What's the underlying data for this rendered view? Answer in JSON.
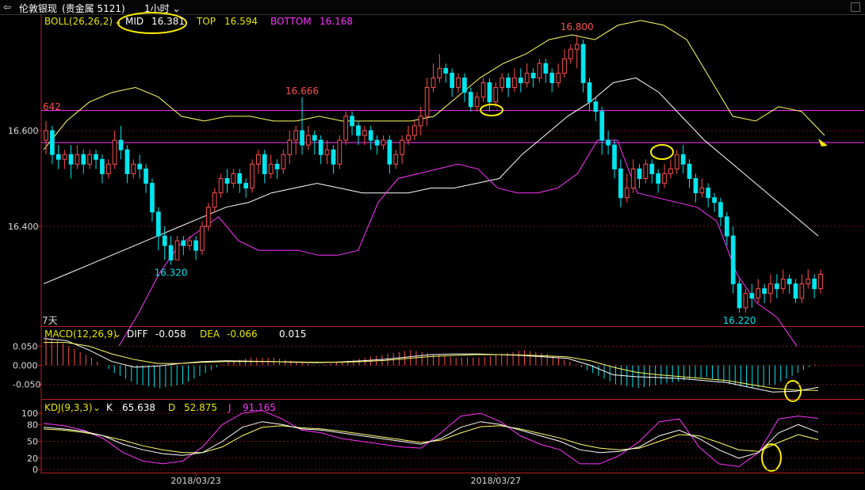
{
  "header": {
    "back_icon": "back-arrow-icon",
    "instrument": "伦敦银现",
    "instrument_detail": "(贵金属 5121)",
    "period": "1小时",
    "period_dropdown_icon": "chevron-down-icon"
  },
  "boll": {
    "label": "BOLL(26,26,2)",
    "mid_label": "MID",
    "mid_value": "16.381",
    "top_label": "TOP",
    "top_value": "16.594",
    "bottom_label": "BOTTOM",
    "bottom_value": "16.168",
    "level_642": "642",
    "days_label": "7天"
  },
  "macd": {
    "label": "MACD(12,26,9)",
    "diff_label": "DIFF",
    "diff_value": "-0.058",
    "dea_label": "DEA",
    "dea_value": "-0.066",
    "macd_value": "0.015"
  },
  "kdj": {
    "label": "KDJ(9,3,3)",
    "k_label": "K",
    "k_value": "65.638",
    "d_label": "D",
    "d_value": "52.875",
    "j_label": "J",
    "j_value": "91.165"
  },
  "colors": {
    "up": "#ff4f4f",
    "down": "#00e5ee",
    "mid": "#ffffff",
    "top": "#ffff66",
    "bottom": "#ff33ff",
    "hline": "#ff33ff",
    "grid": "#7a1010",
    "axis_text": "#dddddd",
    "annotation": "#ffee00",
    "label_yellow": "#e6e600",
    "label_magenta": "#ff33ff"
  },
  "chart_data": {
    "type": "candlestick",
    "main": {
      "y_ticks": [
        16.4,
        16.6
      ],
      "y_tick_labels": [
        "16.400",
        "16.600"
      ],
      "ylim": [
        16.2,
        16.8
      ],
      "annotations": [
        {
          "text": "16.666",
          "value": 16.666,
          "color": "#ff4f4f",
          "bar": 41
        },
        {
          "text": "16.800",
          "value": 16.8,
          "color": "#ff4f4f",
          "bar": 85
        },
        {
          "text": "16.320",
          "value": 16.32,
          "color": "#00e5ee",
          "bar": 20
        },
        {
          "text": "16.220",
          "value": 16.22,
          "color": "#00e5ee",
          "bar": 111
        }
      ],
      "horizontal_lines": [
        16.642,
        16.575
      ],
      "candles": [
        [
          16.58,
          16.6,
          16.55,
          16.62
        ],
        [
          16.6,
          16.55,
          16.53,
          16.61
        ],
        [
          16.55,
          16.54,
          16.52,
          16.57
        ],
        [
          16.54,
          16.55,
          16.52,
          16.56
        ],
        [
          16.55,
          16.53,
          16.5,
          16.57
        ],
        [
          16.53,
          16.55,
          16.52,
          16.57
        ],
        [
          16.55,
          16.53,
          16.51,
          16.56
        ],
        [
          16.53,
          16.55,
          16.52,
          16.56
        ],
        [
          16.55,
          16.54,
          16.52,
          16.56
        ],
        [
          16.54,
          16.51,
          16.49,
          16.55
        ],
        [
          16.51,
          16.53,
          16.5,
          16.54
        ],
        [
          16.53,
          16.58,
          16.52,
          16.6
        ],
        [
          16.58,
          16.56,
          16.54,
          16.61
        ],
        [
          16.56,
          16.51,
          16.49,
          16.57
        ],
        [
          16.51,
          16.53,
          16.5,
          16.54
        ],
        [
          16.53,
          16.52,
          16.5,
          16.55
        ],
        [
          16.52,
          16.49,
          16.47,
          16.53
        ],
        [
          16.49,
          16.43,
          16.41,
          16.5
        ],
        [
          16.43,
          16.38,
          16.35,
          16.44
        ],
        [
          16.38,
          16.36,
          16.33,
          16.4
        ],
        [
          16.36,
          16.33,
          16.32,
          16.38
        ],
        [
          16.33,
          16.37,
          16.33,
          16.38
        ],
        [
          16.37,
          16.36,
          16.34,
          16.38
        ],
        [
          16.36,
          16.37,
          16.35,
          16.38
        ],
        [
          16.37,
          16.35,
          16.33,
          16.38
        ],
        [
          16.35,
          16.4,
          16.34,
          16.41
        ],
        [
          16.4,
          16.44,
          16.39,
          16.45
        ],
        [
          16.44,
          16.47,
          16.43,
          16.48
        ],
        [
          16.47,
          16.5,
          16.46,
          16.51
        ],
        [
          16.5,
          16.49,
          16.47,
          16.52
        ],
        [
          16.49,
          16.51,
          16.48,
          16.52
        ],
        [
          16.51,
          16.49,
          16.47,
          16.52
        ],
        [
          16.49,
          16.48,
          16.46,
          16.5
        ],
        [
          16.48,
          16.53,
          16.47,
          16.54
        ],
        [
          16.53,
          16.55,
          16.51,
          16.56
        ],
        [
          16.55,
          16.51,
          16.49,
          16.56
        ],
        [
          16.51,
          16.53,
          16.5,
          16.55
        ],
        [
          16.53,
          16.52,
          16.5,
          16.54
        ],
        [
          16.52,
          16.55,
          16.51,
          16.56
        ],
        [
          16.55,
          16.58,
          16.53,
          16.6
        ],
        [
          16.58,
          16.6,
          16.55,
          16.61
        ],
        [
          16.6,
          16.57,
          16.55,
          16.67
        ],
        [
          16.57,
          16.59,
          16.56,
          16.61
        ],
        [
          16.59,
          16.58,
          16.55,
          16.6
        ],
        [
          16.58,
          16.55,
          16.53,
          16.59
        ],
        [
          16.55,
          16.56,
          16.53,
          16.58
        ],
        [
          16.56,
          16.53,
          16.51,
          16.57
        ],
        [
          16.53,
          16.58,
          16.52,
          16.59
        ],
        [
          16.58,
          16.63,
          16.57,
          16.64
        ],
        [
          16.63,
          16.61,
          16.59,
          16.64
        ],
        [
          16.61,
          16.59,
          16.57,
          16.62
        ],
        [
          16.59,
          16.6,
          16.57,
          16.61
        ],
        [
          16.6,
          16.58,
          16.56,
          16.61
        ],
        [
          16.58,
          16.57,
          16.55,
          16.59
        ],
        [
          16.57,
          16.58,
          16.56,
          16.59
        ],
        [
          16.58,
          16.53,
          16.51,
          16.59
        ],
        [
          16.53,
          16.55,
          16.52,
          16.56
        ],
        [
          16.55,
          16.58,
          16.53,
          16.59
        ],
        [
          16.58,
          16.59,
          16.57,
          16.61
        ],
        [
          16.59,
          16.61,
          16.58,
          16.62
        ],
        [
          16.61,
          16.63,
          16.59,
          16.65
        ],
        [
          16.63,
          16.69,
          16.61,
          16.71
        ],
        [
          16.69,
          16.71,
          16.68,
          16.74
        ],
        [
          16.71,
          16.73,
          16.7,
          16.76
        ],
        [
          16.73,
          16.72,
          16.7,
          16.74
        ],
        [
          16.72,
          16.69,
          16.67,
          16.73
        ],
        [
          16.69,
          16.71,
          16.68,
          16.72
        ],
        [
          16.71,
          16.68,
          16.66,
          16.72
        ],
        [
          16.68,
          16.65,
          16.64,
          16.69
        ],
        [
          16.65,
          16.67,
          16.64,
          16.68
        ],
        [
          16.67,
          16.7,
          16.66,
          16.71
        ],
        [
          16.7,
          16.66,
          16.64,
          16.71
        ],
        [
          16.66,
          16.69,
          16.65,
          16.7
        ],
        [
          16.69,
          16.71,
          16.68,
          16.72
        ],
        [
          16.71,
          16.69,
          16.67,
          16.72
        ],
        [
          16.69,
          16.71,
          16.68,
          16.73
        ],
        [
          16.71,
          16.7,
          16.68,
          16.73
        ],
        [
          16.7,
          16.72,
          16.69,
          16.74
        ],
        [
          16.72,
          16.71,
          16.69,
          16.73
        ],
        [
          16.71,
          16.74,
          16.7,
          16.75
        ],
        [
          16.74,
          16.72,
          16.7,
          16.75
        ],
        [
          16.72,
          16.7,
          16.68,
          16.73
        ],
        [
          16.7,
          16.72,
          16.69,
          16.74
        ],
        [
          16.72,
          16.75,
          16.71,
          16.77
        ],
        [
          16.75,
          16.77,
          16.74,
          16.78
        ],
        [
          16.77,
          16.78,
          16.73,
          16.8
        ],
        [
          16.78,
          16.7,
          16.68,
          16.79
        ],
        [
          16.7,
          16.66,
          16.64,
          16.71
        ],
        [
          16.66,
          16.64,
          16.62,
          16.67
        ],
        [
          16.64,
          16.58,
          16.55,
          16.65
        ],
        [
          16.58,
          16.57,
          16.55,
          16.6
        ],
        [
          16.57,
          16.52,
          16.5,
          16.58
        ],
        [
          16.52,
          16.46,
          16.44,
          16.54
        ],
        [
          16.46,
          16.48,
          16.45,
          16.51
        ],
        [
          16.48,
          16.52,
          16.47,
          16.54
        ],
        [
          16.52,
          16.5,
          16.48,
          16.53
        ],
        [
          16.5,
          16.53,
          16.49,
          16.54
        ],
        [
          16.53,
          16.51,
          16.49,
          16.54
        ],
        [
          16.51,
          16.49,
          16.47,
          16.52
        ],
        [
          16.49,
          16.51,
          16.48,
          16.53
        ],
        [
          16.51,
          16.52,
          16.5,
          16.54
        ],
        [
          16.52,
          16.55,
          16.51,
          16.56
        ],
        [
          16.55,
          16.53,
          16.51,
          16.57
        ],
        [
          16.53,
          16.5,
          16.48,
          16.54
        ],
        [
          16.5,
          16.47,
          16.45,
          16.51
        ],
        [
          16.47,
          16.48,
          16.46,
          16.5
        ],
        [
          16.48,
          16.46,
          16.44,
          16.49
        ],
        [
          16.46,
          16.45,
          16.43,
          16.47
        ],
        [
          16.45,
          16.42,
          16.4,
          16.46
        ],
        [
          16.42,
          16.38,
          16.36,
          16.43
        ],
        [
          16.38,
          16.28,
          16.26,
          16.4
        ],
        [
          16.28,
          16.23,
          16.22,
          16.29
        ],
        [
          16.23,
          16.26,
          16.22,
          16.27
        ],
        [
          16.26,
          16.25,
          16.23,
          16.28
        ],
        [
          16.25,
          16.27,
          16.24,
          16.29
        ],
        [
          16.27,
          16.26,
          16.24,
          16.28
        ],
        [
          16.26,
          16.28,
          16.24,
          16.3
        ],
        [
          16.28,
          16.27,
          16.25,
          16.3
        ],
        [
          16.27,
          16.29,
          16.26,
          16.31
        ],
        [
          16.29,
          16.28,
          16.26,
          16.3
        ],
        [
          16.28,
          16.25,
          16.24,
          16.29
        ],
        [
          16.25,
          16.28,
          16.24,
          16.3
        ],
        [
          16.28,
          16.29,
          16.27,
          16.31
        ],
        [
          16.29,
          16.27,
          16.25,
          16.3
        ],
        [
          16.27,
          16.3,
          16.26,
          16.31
        ]
      ],
      "mid_line": [
        16.28,
        16.3,
        16.32,
        16.34,
        16.36,
        16.38,
        16.4,
        16.42,
        16.44,
        16.45,
        16.47,
        16.48,
        16.49,
        16.48,
        16.47,
        16.47,
        16.47,
        16.48,
        16.48,
        16.49,
        16.5,
        16.55,
        16.59,
        16.63,
        16.66,
        16.7,
        16.71,
        16.68,
        16.63,
        16.58,
        16.54,
        16.5,
        16.46,
        16.42,
        16.38
      ],
      "top_line": [
        16.56,
        16.62,
        16.66,
        16.68,
        16.69,
        16.67,
        16.63,
        16.62,
        16.63,
        16.63,
        16.62,
        16.62,
        16.63,
        16.62,
        16.62,
        16.62,
        16.62,
        16.63,
        16.67,
        16.71,
        16.74,
        16.76,
        16.79,
        16.8,
        16.79,
        16.82,
        16.83,
        16.82,
        16.79,
        16.71,
        16.63,
        16.62,
        16.65,
        16.64,
        16.59
      ],
      "bottom_line": [
        16.15,
        16.22,
        16.3,
        16.36,
        16.39,
        16.42,
        16.37,
        16.35,
        16.35,
        16.35,
        16.34,
        16.34,
        16.35,
        16.45,
        16.5,
        16.51,
        16.52,
        16.53,
        16.52,
        16.48,
        16.47,
        16.47,
        16.48,
        16.51,
        16.58,
        16.58,
        16.47,
        16.46,
        16.45,
        16.44,
        16.41,
        16.3,
        16.24,
        16.21,
        16.15
      ]
    },
    "macd": {
      "y_ticks": [
        0.05,
        0.0,
        -0.05
      ],
      "y_tick_labels": [
        "0.050",
        "0.000",
        "-0.050"
      ],
      "ylim": [
        -0.08,
        0.08
      ],
      "hist": [
        0.08,
        0.05,
        0.02,
        -0.02,
        -0.05,
        -0.06,
        -0.05,
        -0.02,
        0.01,
        0.02,
        0.02,
        0.01,
        0.0,
        0.01,
        0.02,
        0.03,
        0.04,
        0.03,
        0.02,
        0.02,
        0.03,
        0.04,
        0.03,
        0.01,
        -0.02,
        -0.05,
        -0.06,
        -0.05,
        -0.04,
        -0.03,
        -0.05,
        -0.06,
        -0.05,
        -0.02,
        0.01
      ],
      "diff": [
        0.07,
        0.065,
        0.04,
        0.01,
        -0.005,
        -0.002,
        0.005,
        0.01,
        0.012,
        0.011,
        0.01,
        0.008,
        0.007,
        0.009,
        0.012,
        0.016,
        0.022,
        0.028,
        0.03,
        0.03,
        0.028,
        0.026,
        0.022,
        0.018,
        0.0,
        -0.025,
        -0.03,
        -0.032,
        -0.035,
        -0.04,
        -0.045,
        -0.058,
        -0.07,
        -0.068,
        -0.058
      ],
      "dea": [
        0.06,
        0.06,
        0.05,
        0.03,
        0.015,
        0.005,
        0.005,
        0.008,
        0.01,
        0.01,
        0.01,
        0.009,
        0.008,
        0.008,
        0.01,
        0.013,
        0.018,
        0.023,
        0.026,
        0.028,
        0.028,
        0.027,
        0.025,
        0.022,
        0.012,
        -0.005,
        -0.018,
        -0.025,
        -0.03,
        -0.035,
        -0.04,
        -0.05,
        -0.06,
        -0.065,
        -0.066
      ]
    },
    "kdj": {
      "y_ticks": [
        100,
        80,
        50,
        20,
        0
      ],
      "y_tick_labels": [
        "100",
        "80",
        "50",
        "20",
        "0"
      ],
      "ylim": [
        0,
        110
      ],
      "k": [
        75,
        72,
        68,
        60,
        45,
        35,
        28,
        25,
        30,
        50,
        75,
        85,
        80,
        72,
        70,
        65,
        60,
        55,
        50,
        45,
        55,
        75,
        85,
        80,
        70,
        60,
        50,
        35,
        30,
        32,
        40,
        60,
        70,
        55,
        35,
        20,
        30,
        65,
        80,
        66
      ],
      "d": [
        72,
        70,
        66,
        60,
        52,
        42,
        35,
        30,
        30,
        40,
        60,
        75,
        78,
        74,
        72,
        68,
        63,
        58,
        53,
        48,
        52,
        65,
        76,
        78,
        72,
        64,
        56,
        45,
        38,
        35,
        38,
        50,
        62,
        60,
        48,
        35,
        32,
        48,
        62,
        53
      ],
      "j": [
        82,
        78,
        70,
        55,
        30,
        15,
        10,
        15,
        40,
        80,
        100,
        105,
        90,
        70,
        65,
        55,
        50,
        45,
        40,
        38,
        65,
        95,
        100,
        85,
        60,
        45,
        35,
        10,
        10,
        25,
        50,
        85,
        90,
        40,
        10,
        5,
        30,
        90,
        95,
        91
      ]
    },
    "x_labels": [
      {
        "text": "2018/03/23",
        "bar": 24
      },
      {
        "text": "2018/03/27",
        "bar": 72
      }
    ]
  }
}
